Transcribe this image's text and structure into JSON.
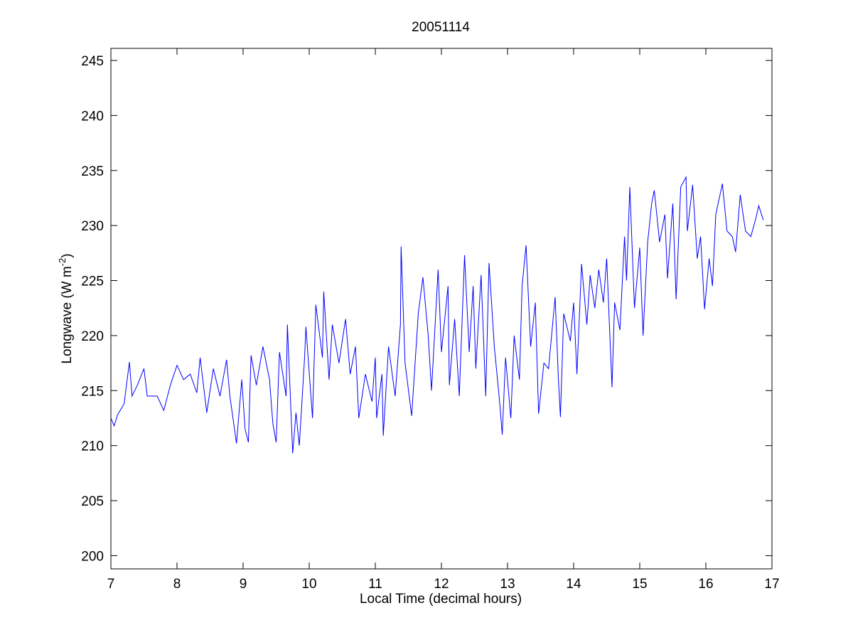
{
  "chart_data": {
    "type": "line",
    "title": "20051114",
    "x_label": "Local Time (decimal hours)",
    "y_label": [
      "Longwave (W m",
      "-2",
      ")"
    ],
    "xlim": [
      7,
      17
    ],
    "ylim": [
      198.8,
      246.1
    ],
    "xticks": [
      7,
      8,
      9,
      10,
      11,
      12,
      13,
      14,
      15,
      16,
      17
    ],
    "yticks": [
      200,
      205,
      210,
      215,
      220,
      225,
      230,
      235,
      240,
      245
    ],
    "series": [
      {
        "color": "#0000ff",
        "x": [
          7.0,
          7.05,
          7.1,
          7.2,
          7.28,
          7.32,
          7.4,
          7.5,
          7.55,
          7.7,
          7.8,
          7.9,
          8.0,
          8.1,
          8.2,
          8.3,
          8.35,
          8.45,
          8.55,
          8.65,
          8.75,
          8.8,
          8.9,
          8.98,
          9.03,
          9.08,
          9.12,
          9.2,
          9.3,
          9.4,
          9.45,
          9.5,
          9.55,
          9.65,
          9.67,
          9.75,
          9.8,
          9.85,
          9.93,
          9.95,
          10.05,
          10.1,
          10.2,
          10.22,
          10.3,
          10.35,
          10.45,
          10.55,
          10.62,
          10.7,
          10.75,
          10.85,
          10.95,
          11.0,
          11.02,
          11.1,
          11.12,
          11.2,
          11.3,
          11.38,
          11.39,
          11.45,
          11.55,
          11.65,
          11.72,
          11.8,
          11.85,
          11.95,
          12.0,
          12.1,
          12.12,
          12.2,
          12.27,
          12.35,
          12.42,
          12.48,
          12.52,
          12.6,
          12.67,
          12.72,
          12.8,
          12.88,
          12.92,
          12.97,
          13.05,
          13.1,
          13.18,
          13.22,
          13.28,
          13.35,
          13.42,
          13.47,
          13.55,
          13.62,
          13.72,
          13.77,
          13.8,
          13.85,
          13.95,
          14.0,
          14.05,
          14.12,
          14.2,
          14.25,
          14.32,
          14.38,
          14.45,
          14.5,
          14.58,
          14.62,
          14.7,
          14.77,
          14.8,
          14.85,
          14.92,
          15.0,
          15.05,
          15.12,
          15.18,
          15.22,
          15.3,
          15.38,
          15.42,
          15.5,
          15.55,
          15.62,
          15.7,
          15.72,
          15.8,
          15.87,
          15.92,
          15.98,
          16.05,
          16.1,
          16.15,
          16.25,
          16.32,
          16.4,
          16.45,
          16.52,
          16.6,
          16.68,
          16.75,
          16.8,
          16.87
        ],
        "values": [
          212.5,
          211.8,
          212.8,
          213.8,
          217.6,
          214.5,
          215.5,
          217.0,
          214.5,
          214.5,
          213.2,
          215.5,
          217.3,
          216.0,
          216.5,
          214.8,
          218.0,
          213.0,
          217.0,
          214.5,
          217.8,
          214.5,
          210.2,
          216.0,
          211.5,
          210.3,
          218.2,
          215.5,
          219.0,
          216.0,
          212.0,
          210.3,
          218.5,
          214.5,
          221.0,
          209.3,
          213.0,
          210.0,
          218.0,
          220.8,
          212.5,
          222.8,
          218.0,
          224.0,
          216.0,
          221.0,
          217.5,
          221.5,
          216.5,
          219.0,
          212.5,
          216.5,
          214.0,
          218.0,
          212.5,
          216.5,
          210.9,
          219.0,
          214.5,
          221.0,
          228.1,
          217.5,
          212.7,
          222.0,
          225.3,
          220.0,
          215.0,
          226.0,
          218.5,
          224.5,
          215.5,
          221.5,
          214.5,
          227.3,
          218.5,
          224.5,
          217.0,
          225.5,
          214.5,
          226.6,
          219.0,
          214.0,
          211.0,
          218.0,
          212.5,
          220.0,
          216.0,
          224.5,
          228.2,
          219.0,
          223.0,
          212.9,
          217.5,
          217.0,
          223.5,
          216.0,
          212.6,
          222.0,
          219.5,
          223.0,
          216.5,
          226.5,
          221.0,
          225.5,
          222.5,
          226.0,
          223.0,
          227.0,
          215.3,
          223.0,
          220.5,
          229.0,
          225.0,
          233.5,
          222.5,
          228.0,
          220.0,
          228.5,
          232.0,
          233.2,
          228.5,
          231.0,
          225.2,
          232.0,
          223.3,
          233.5,
          234.4,
          229.5,
          233.7,
          227.0,
          229.0,
          222.4,
          227.0,
          224.5,
          231.0,
          233.8,
          229.5,
          229.0,
          227.6,
          232.8,
          229.5,
          229.0,
          230.5,
          231.8,
          230.5
        ]
      }
    ]
  }
}
